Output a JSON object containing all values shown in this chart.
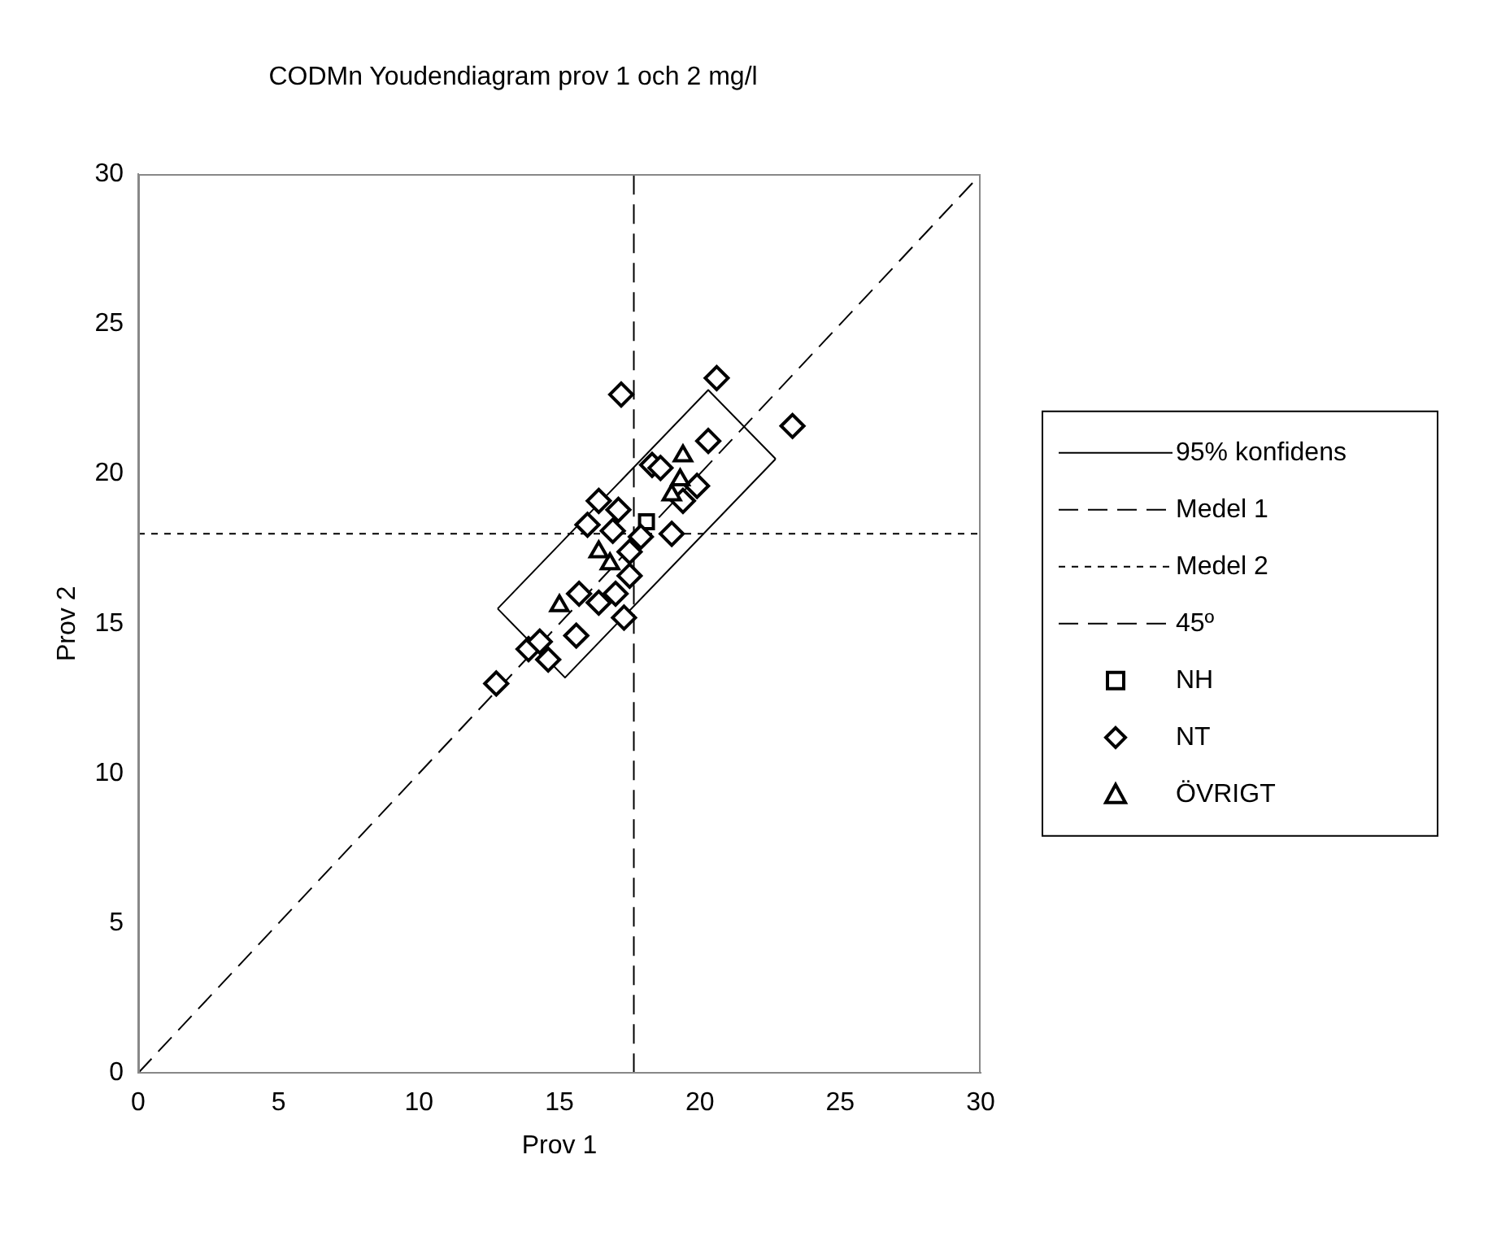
{
  "chart_data": {
    "type": "scatter",
    "title": "CODMn Youdendiagram prov 1 och 2 mg/l",
    "xlabel": "Prov 1",
    "ylabel": "Prov 2",
    "xlim": [
      0,
      30
    ],
    "ylim": [
      0,
      30
    ],
    "xticks": [
      0,
      5,
      10,
      15,
      20,
      25,
      30
    ],
    "yticks": [
      0,
      5,
      10,
      15,
      20,
      25,
      30
    ],
    "grid": false,
    "legend": "right",
    "series": [
      {
        "name": "95% konfidens",
        "type": "line",
        "color": "#000000",
        "line_style": "solid",
        "marker": "none",
        "x": [
          12.8,
          20.3,
          22.7
        ],
        "values": [
          15.5,
          22.8,
          20.5
        ]
      },
      {
        "type": "line",
        "color": "#000000",
        "line_style": "solid",
        "marker": "none",
        "x": [
          12.8,
          15.2,
          22.7
        ],
        "values": [
          15.5,
          13.2,
          20.5
        ]
      },
      {
        "name": "Medel 1",
        "type": "line",
        "color": "#000000",
        "line_style": "dashed",
        "marker": "none",
        "x": [
          17.65,
          17.65
        ],
        "values": [
          0,
          30
        ]
      },
      {
        "name": "Medel 2",
        "type": "line",
        "color": "#000000",
        "line_style": "dotted",
        "marker": "none",
        "x": [
          0,
          30
        ],
        "values": [
          18,
          18
        ]
      },
      {
        "name": "45º",
        "type": "line",
        "color": "#000000",
        "line_style": "dashed",
        "marker": "none",
        "x": [
          0,
          30
        ],
        "values": [
          0,
          30
        ]
      },
      {
        "name": "NH",
        "type": "scatter",
        "color": "#000000",
        "marker": "square",
        "x": [
          18.1
        ],
        "values": [
          18.4
        ]
      },
      {
        "name": "NT",
        "type": "scatter",
        "color": "#000000",
        "marker": "diamond",
        "x": [
          12.75,
          13.9,
          14.3,
          14.6,
          15.6,
          15.7,
          17.0,
          17.3,
          16.4,
          16.0,
          16.4,
          17.1,
          17.2,
          20.6,
          23.3,
          20.3,
          18.3,
          19.9,
          19.0,
          17.9,
          17.5,
          19.4,
          16.9,
          17.5,
          18.6
        ],
        "values": [
          13.0,
          14.15,
          14.4,
          13.8,
          14.6,
          16.0,
          16.0,
          15.2,
          15.7,
          18.3,
          19.1,
          18.8,
          22.65,
          23.2,
          21.6,
          21.1,
          20.3,
          19.6,
          18.0,
          17.9,
          17.4,
          19.1,
          18.1,
          16.6,
          20.2
        ]
      },
      {
        "name": "ÖVRIGT",
        "type": "scatter",
        "color": "#000000",
        "marker": "triangle",
        "x": [
          15.0,
          16.8,
          16.4,
          19.0,
          19.4,
          19.3
        ],
        "values": [
          15.6,
          17.0,
          17.4,
          19.3,
          20.6,
          19.8
        ]
      }
    ]
  }
}
